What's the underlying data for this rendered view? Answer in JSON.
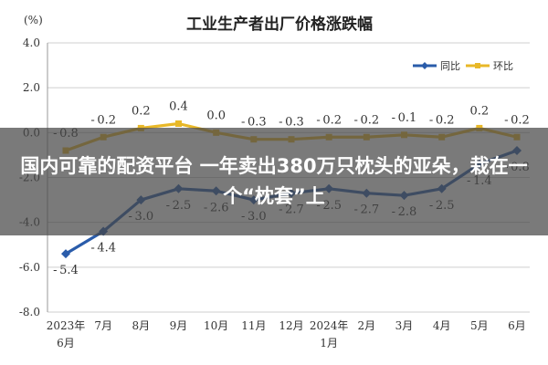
{
  "chart_data": {
    "type": "line",
    "title": "工业生产者出厂价格涨跌幅",
    "unit_label": "(%)",
    "categories": [
      "2023年6月",
      "7月",
      "8月",
      "9月",
      "10月",
      "11月",
      "12月",
      "2024年1月",
      "2月",
      "3月",
      "4月",
      "5月",
      "6月"
    ],
    "x_tick_lines": [
      [
        "2023年",
        "6月"
      ],
      [
        "7月"
      ],
      [
        "8月"
      ],
      [
        "9月"
      ],
      [
        "10月"
      ],
      [
        "11月"
      ],
      [
        "12月"
      ],
      [
        "2024年",
        "1月"
      ],
      [
        "2月"
      ],
      [
        "3月"
      ],
      [
        "4月"
      ],
      [
        "5月"
      ],
      [
        "6月"
      ]
    ],
    "ylim": [
      -8.0,
      4.0
    ],
    "yticks": [
      4.0,
      2.0,
      0.0,
      -2.0,
      -4.0,
      -6.0,
      -8.0
    ],
    "ytick_labels": [
      "4.0",
      "2.0",
      "0.0",
      "-2.0",
      "-4.0",
      "-6.0",
      "-8.0"
    ],
    "grid": "horizontal",
    "legend_position": "top-right",
    "series": [
      {
        "name": "同比",
        "color": "#2a5caa",
        "marker": "diamond",
        "values": [
          -5.4,
          -4.4,
          -3.0,
          -2.5,
          -2.6,
          -3.0,
          -2.7,
          -2.5,
          -2.7,
          -2.8,
          -2.5,
          -1.4,
          -0.8
        ],
        "labels": [
          "-5.4",
          "-4.4",
          "-3.0",
          "-2.5",
          "-2.6",
          "-3.0",
          "-2.7",
          "-2.5",
          "-2.7",
          "-2.8",
          "-2.5",
          "-1.4",
          "-0.8"
        ]
      },
      {
        "name": "环比",
        "color": "#e8b828",
        "marker": "square",
        "values": [
          -0.8,
          -0.2,
          0.2,
          0.4,
          0.0,
          -0.3,
          -0.3,
          -0.2,
          -0.2,
          -0.1,
          -0.2,
          0.2,
          -0.2
        ],
        "labels": [
          "-0.8",
          "-0.2",
          "0.2",
          "0.4",
          "0.0",
          "-0.3",
          "-0.3",
          "-0.2",
          "-0.2",
          "-0.1",
          "-0.2",
          "0.2",
          "-0.2"
        ]
      }
    ]
  },
  "banner": {
    "text": "国内可靠的配资平台 一年卖出380万只枕头的亚朵，栽在一个“枕套”上"
  },
  "colors": {
    "grid": "#cfcfcf",
    "axis": "#999999",
    "overlay": "rgba(70,70,70,0.72)"
  }
}
